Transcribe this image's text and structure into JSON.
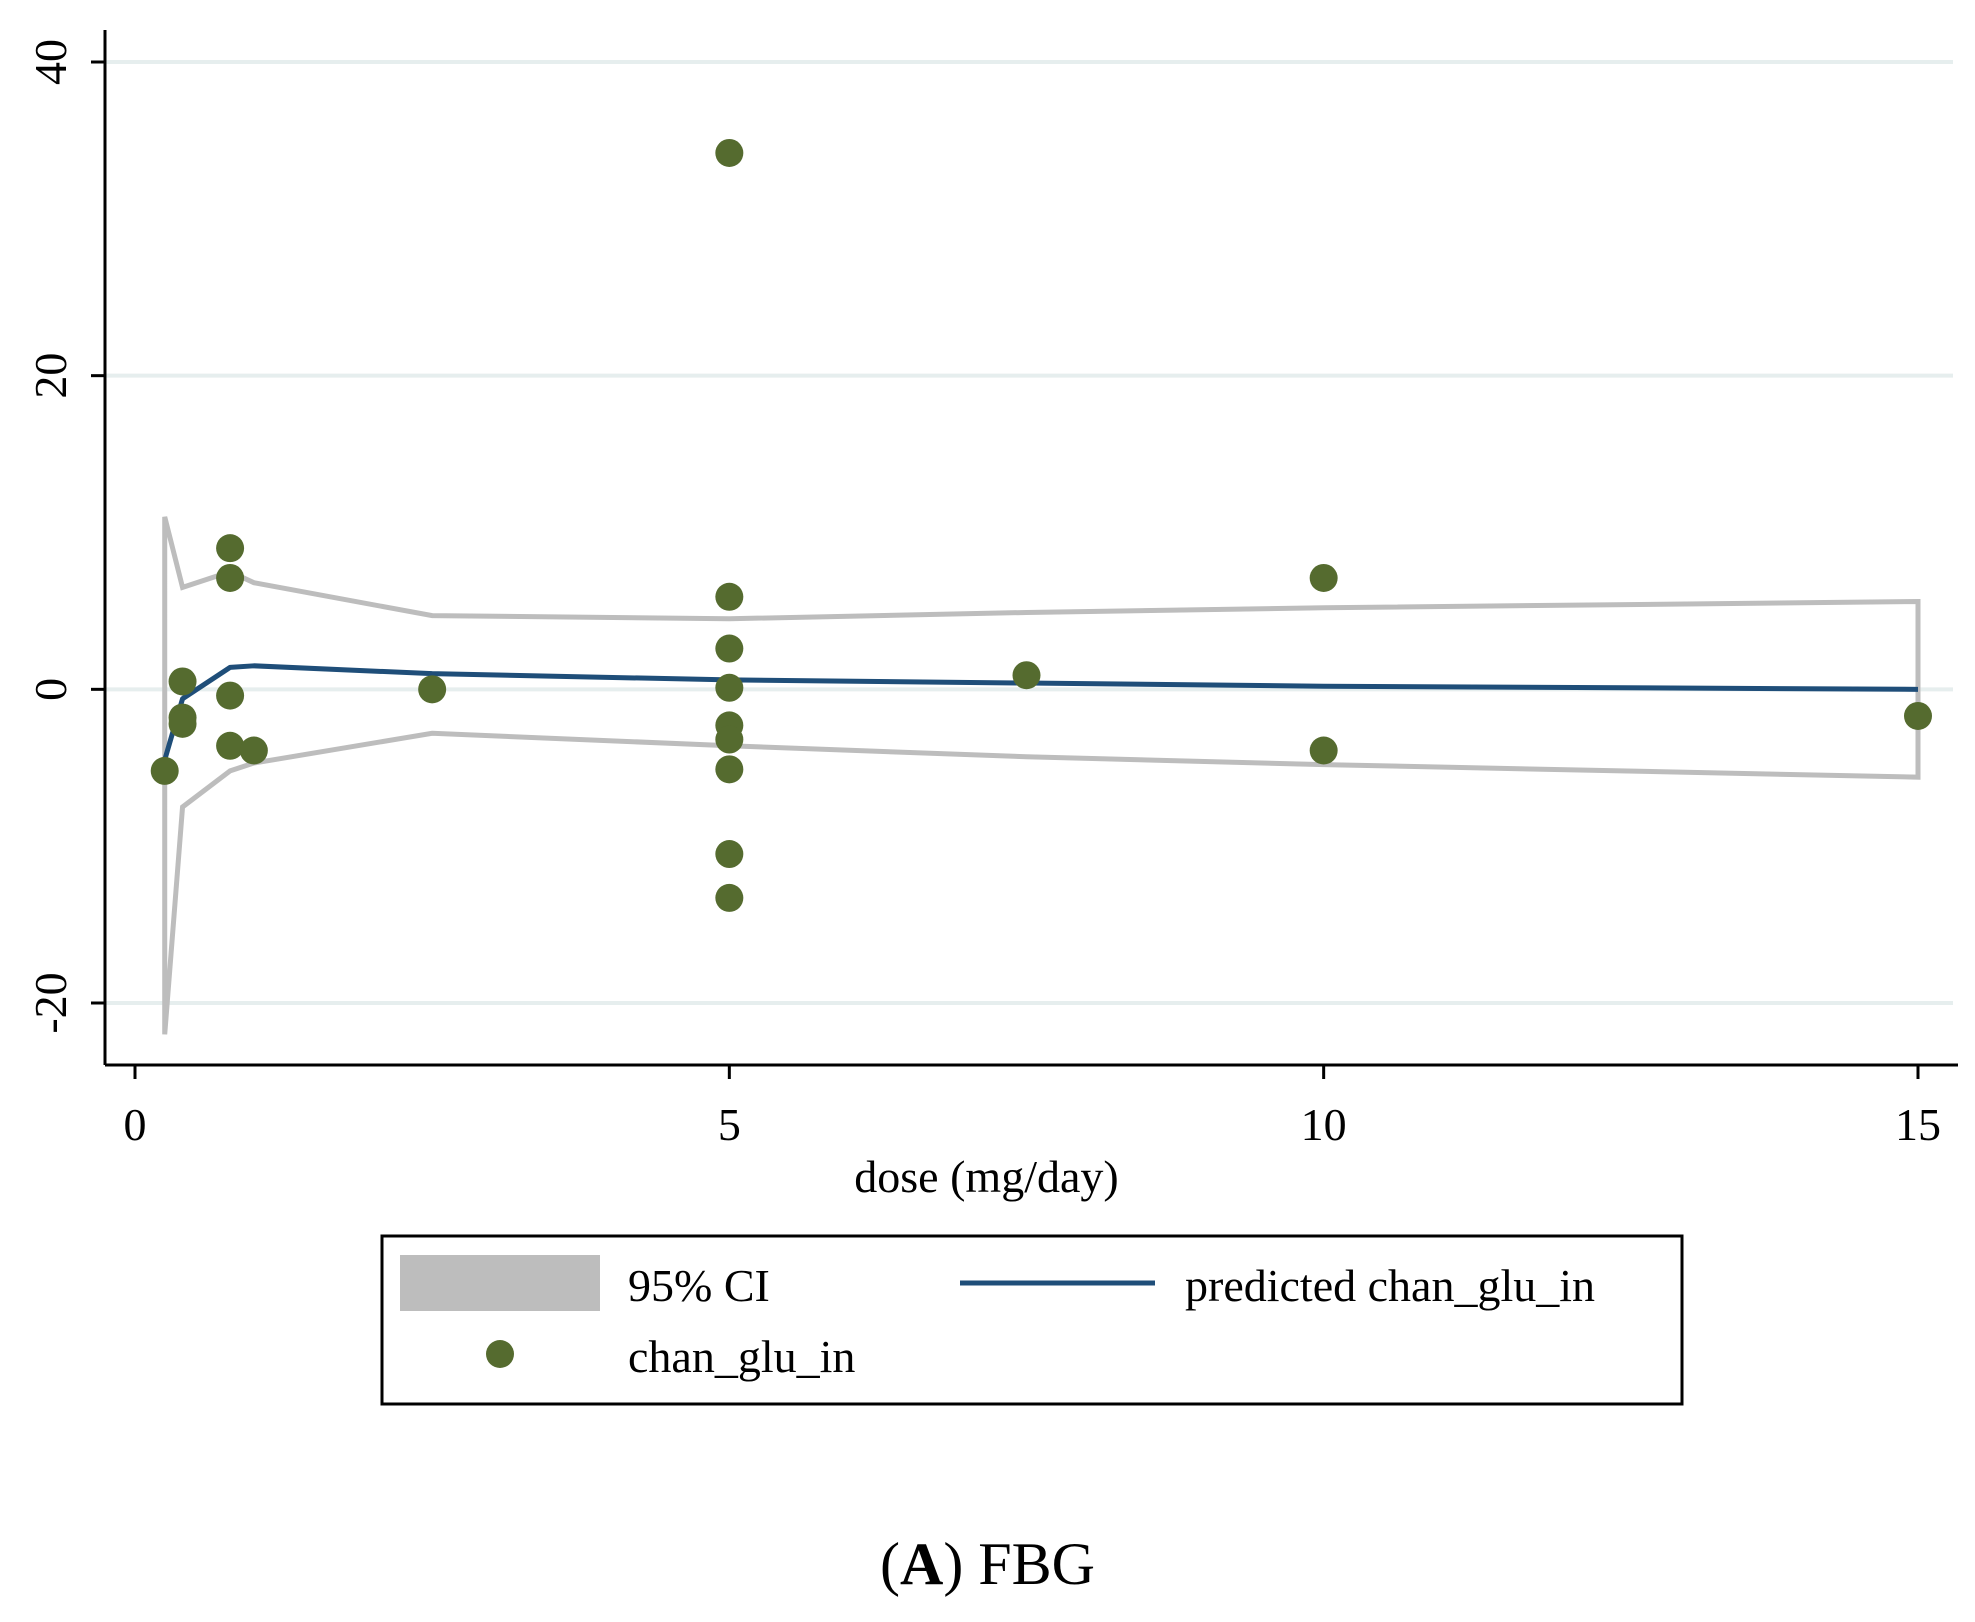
{
  "chart_data": {
    "type": "scatter",
    "title": "",
    "xlabel": "dose (mg/day)",
    "ylabel": "",
    "xlim": [
      -0.25,
      15.25
    ],
    "ylim": [
      -24,
      42
    ],
    "x_ticks": [
      0,
      5,
      10,
      15
    ],
    "y_ticks": [
      -20,
      0,
      20,
      40
    ],
    "grid": "horizontal",
    "series": [
      {
        "name": "95% CI",
        "kind": "ci-band",
        "color": "#bdbdbd",
        "x": [
          0.25,
          0.4,
          0.8,
          1.0,
          2.5,
          5,
          7.5,
          10,
          15
        ],
        "upper": [
          11,
          6.5,
          7.5,
          6.8,
          4.7,
          4.5,
          4.9,
          5.2,
          5.6
        ],
        "lower": [
          -22,
          -7.5,
          -5.2,
          -4.7,
          -2.8,
          -3.6,
          -4.3,
          -4.8,
          -5.6
        ]
      },
      {
        "name": "predicted chan_glu_in",
        "kind": "line",
        "color": "#1f4e79",
        "x": [
          0.25,
          0.4,
          0.8,
          1.0,
          2.5,
          5,
          7.5,
          10,
          15
        ],
        "y": [
          -4.5,
          -0.6,
          1.4,
          1.5,
          1.0,
          0.6,
          0.4,
          0.2,
          0.0
        ]
      },
      {
        "name": "chan_glu_in",
        "kind": "points",
        "color": "#556b2f",
        "points": [
          {
            "x": 0.25,
            "y": -5.2
          },
          {
            "x": 0.4,
            "y": 0.5
          },
          {
            "x": 0.4,
            "y": -1.8
          },
          {
            "x": 0.4,
            "y": -2.2
          },
          {
            "x": 0.8,
            "y": 9.0
          },
          {
            "x": 0.8,
            "y": 7.1
          },
          {
            "x": 0.8,
            "y": -0.4
          },
          {
            "x": 0.8,
            "y": -3.6
          },
          {
            "x": 1.0,
            "y": -3.9
          },
          {
            "x": 2.5,
            "y": 0.0
          },
          {
            "x": 5,
            "y": 34.2
          },
          {
            "x": 5,
            "y": 5.9
          },
          {
            "x": 5,
            "y": 2.6
          },
          {
            "x": 5,
            "y": 0.1
          },
          {
            "x": 5,
            "y": -2.3
          },
          {
            "x": 5,
            "y": -3.2
          },
          {
            "x": 5,
            "y": -5.1
          },
          {
            "x": 5,
            "y": -10.5
          },
          {
            "x": 5,
            "y": -13.3
          },
          {
            "x": 7.5,
            "y": 0.9
          },
          {
            "x": 10,
            "y": 7.1
          },
          {
            "x": 10,
            "y": -3.9
          },
          {
            "x": 15,
            "y": -1.7
          }
        ]
      }
    ],
    "legend": {
      "position": "bottom",
      "entries": [
        "95% CI",
        "predicted chan_glu_in",
        "chan_glu_in"
      ]
    }
  },
  "caption": {
    "label": "A",
    "text": "FBG"
  }
}
